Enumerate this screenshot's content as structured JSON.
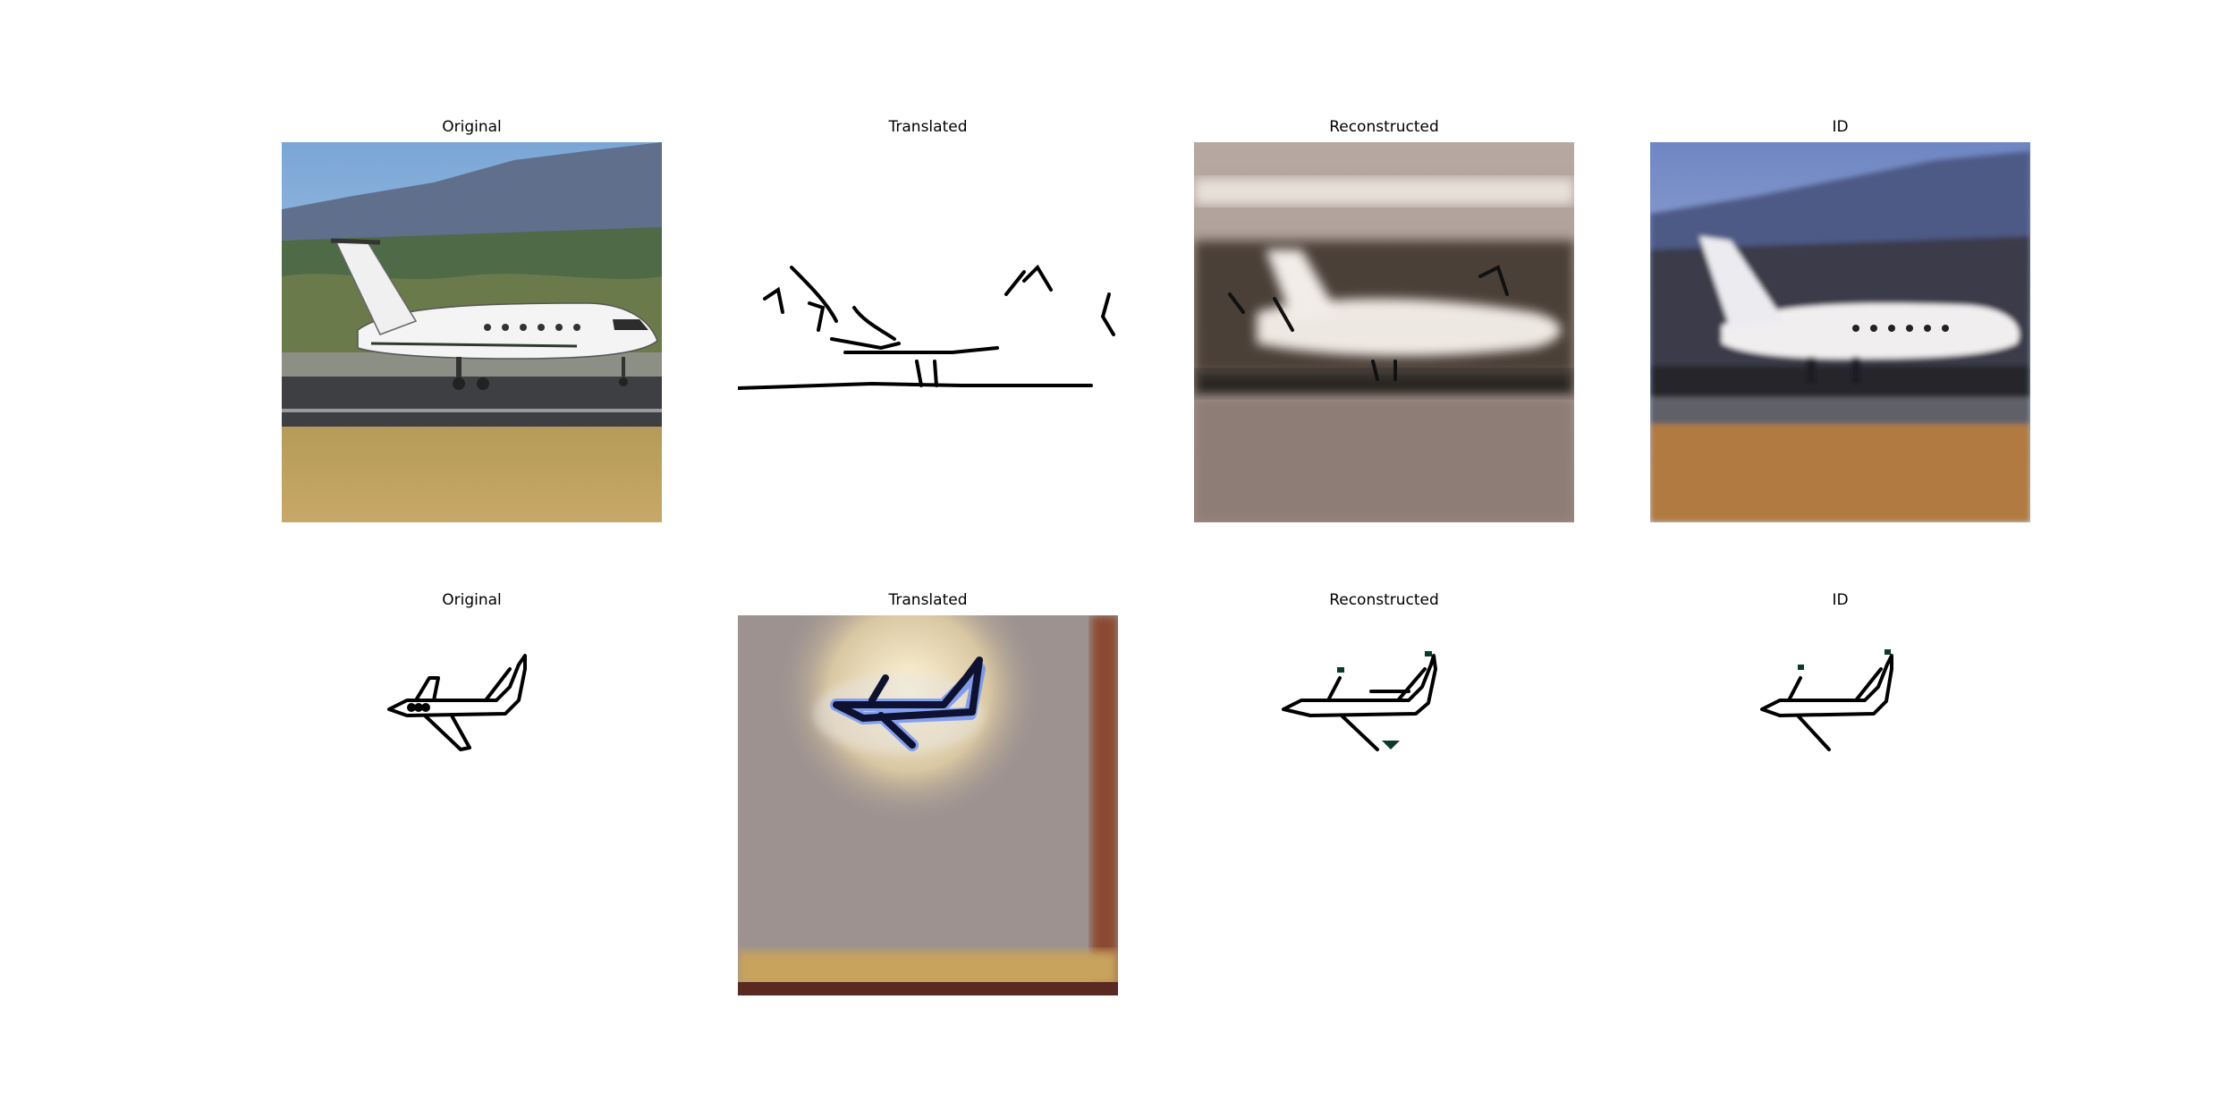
{
  "rows": [
    {
      "panels": [
        {
          "title": "Original"
        },
        {
          "title": "Translated"
        },
        {
          "title": "Reconstructed"
        },
        {
          "title": "ID"
        }
      ]
    },
    {
      "panels": [
        {
          "title": "Original"
        },
        {
          "title": "Translated"
        },
        {
          "title": "Reconstructed"
        },
        {
          "title": "ID"
        }
      ]
    }
  ]
}
